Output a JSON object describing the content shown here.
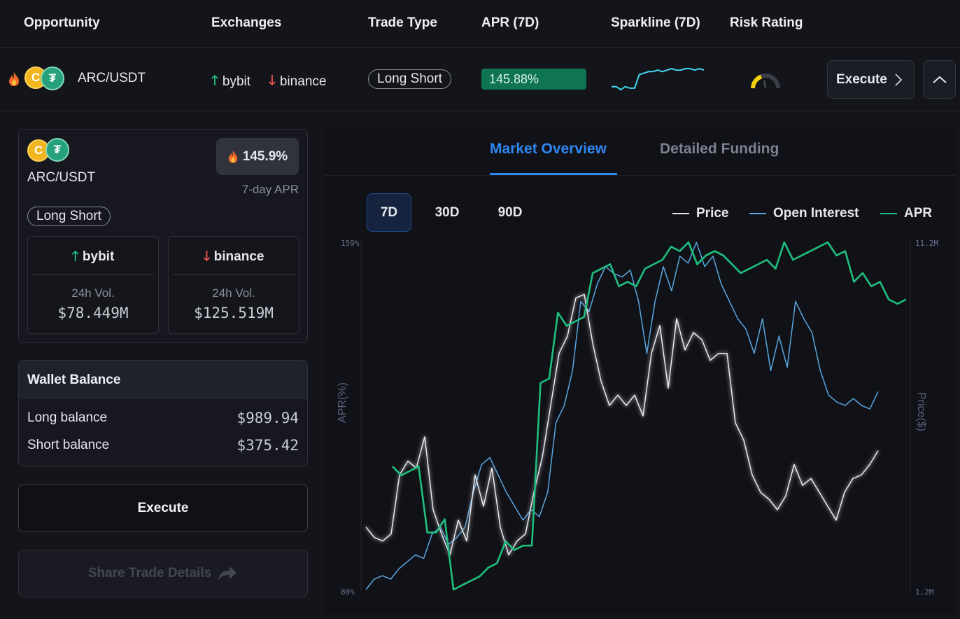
{
  "table": {
    "headers": [
      "Opportunity",
      "Exchanges",
      "Trade Type",
      "APR (7D)",
      "Sparkline (7D)",
      "Risk Rating"
    ]
  },
  "row": {
    "pair": "ARC/USDT",
    "coin_a_symbol": "arc-coin-icon",
    "coin_b_symbol": "usdt-coin-icon",
    "long_exchange": "bybit",
    "short_exchange": "binance",
    "trade_type": "Long Short",
    "apr": "145.88%",
    "apr_fill_fraction": 1.0,
    "sparkline_values": [
      12,
      12,
      10,
      12,
      11,
      11,
      20,
      21,
      22,
      22,
      23,
      22,
      23,
      24,
      23,
      23,
      24,
      24,
      23,
      24,
      23
    ],
    "risk_level_fraction": 0.35,
    "execute_label": "Execute",
    "colors": {
      "apr_fill": "#0f7451",
      "sparkline": "#43d6f0",
      "risk": "#f2d20a"
    }
  },
  "card": {
    "pair": "ARC/USDT",
    "apr_badge": "145.9%",
    "apr_caption": "7-day APR",
    "trade_type": "Long Short",
    "long": {
      "exchange": "bybit",
      "vol_label": "24h Vol.",
      "vol": "$78.449M"
    },
    "short": {
      "exchange": "binance",
      "vol_label": "24h Vol.",
      "vol": "$125.519M"
    }
  },
  "wallet": {
    "title": "Wallet Balance",
    "long_label": "Long balance",
    "long_value": "$989.94",
    "short_label": "Short balance",
    "short_value": "$375.42"
  },
  "actions": {
    "execute": "Execute",
    "share": "Share Trade Details"
  },
  "chart": {
    "tabs": [
      "Market Overview",
      "Detailed Funding"
    ],
    "active_tab": "Market Overview",
    "ranges": [
      "7D",
      "30D",
      "90D"
    ],
    "active_range": "7D",
    "legend": [
      "Price",
      "Open Interest",
      "APR"
    ]
  },
  "chart_data": {
    "type": "line",
    "y_left": {
      "label": "APR(%)",
      "min_label": "80%",
      "max_label": "159%",
      "range": [
        80,
        159
      ]
    },
    "y_right": {
      "label": "Price($)",
      "min_label": "1.2M",
      "max_label": "11.2M",
      "range": [
        1.2,
        11.2
      ]
    },
    "grid": false,
    "legend_position": "top-right",
    "series": [
      {
        "name": "APR",
        "color": "#1fbf7f",
        "values": [
          108,
          106,
          107,
          108,
          93,
          93,
          96,
          80,
          81,
          82,
          83,
          85,
          86,
          91,
          89,
          90,
          90,
          127,
          128,
          143,
          140,
          141,
          142,
          152,
          153,
          154,
          149,
          150,
          149,
          153,
          154,
          155,
          158,
          157,
          159,
          154,
          156,
          157,
          156,
          154,
          152,
          153,
          154,
          155,
          153,
          159,
          155,
          156,
          157,
          158,
          159,
          156,
          157,
          150,
          152,
          149,
          150,
          146,
          145,
          146
        ]
      },
      {
        "name": "Open Interest",
        "color": "#5aa6e0",
        "values": [
          1.2,
          1.5,
          1.6,
          1.5,
          1.8,
          2.0,
          2.2,
          2.1,
          2.8,
          3.0,
          2.5,
          2.7,
          3.0,
          4.0,
          4.8,
          5.0,
          4.5,
          4.0,
          3.6,
          3.2,
          3.5,
          3.3,
          4.0,
          6.0,
          6.5,
          7.5,
          9.5,
          9.2,
          10.0,
          10.5,
          10.3,
          10.2,
          10.4,
          9.5,
          8.0,
          9.5,
          10.5,
          9.8,
          10.8,
          10.6,
          11.2,
          10.5,
          10.8,
          10.0,
          9.5,
          9.0,
          8.7,
          8.0,
          9.0,
          7.5,
          8.5,
          7.6,
          9.5,
          9.0,
          8.6,
          7.5,
          6.8,
          6.6,
          6.5,
          6.7,
          6.5,
          6.4,
          6.9
        ]
      },
      {
        "name": "Price",
        "color": "#e8eaf0",
        "values": [
          3.0,
          2.7,
          2.6,
          2.8,
          4.5,
          4.9,
          4.7,
          5.6,
          3.5,
          2.8,
          2.2,
          3.2,
          2.6,
          4.5,
          3.6,
          4.7,
          3.0,
          2.2,
          2.6,
          2.8,
          4.0,
          5.0,
          6.5,
          8.0,
          8.5,
          9.6,
          9.7,
          8.3,
          7.2,
          6.5,
          6.8,
          6.5,
          6.8,
          6.2,
          8.0,
          8.8,
          7.0,
          9.0,
          8.1,
          8.6,
          8.4,
          7.8,
          8.0,
          8.0,
          6.0,
          5.5,
          4.5,
          4.0,
          3.8,
          3.5,
          3.9,
          4.8,
          4.2,
          4.4,
          4.0,
          3.6,
          3.2,
          4.0,
          4.4,
          4.5,
          4.8,
          5.2
        ]
      }
    ]
  }
}
